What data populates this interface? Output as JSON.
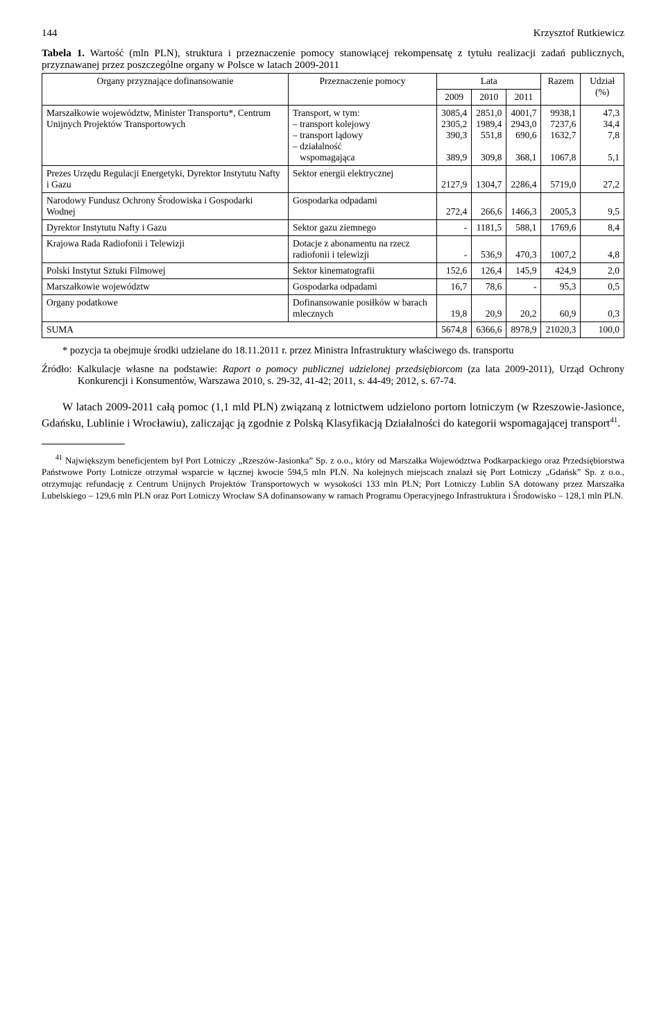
{
  "header": {
    "page_number": "144",
    "running_head": "Krzysztof Rutkiewicz"
  },
  "table": {
    "caption_label": "Tabela 1.",
    "caption_text": "Wartość (mln PLN), struktura i przeznaczenie pomocy stanowiącej rekompensatę z tytułu realizacji zadań publicznych, przyznawanej przez poszczególne organy w Polsce w latach 2009-2011",
    "columns": {
      "col1": "Organy przyznające dofinansowanie",
      "col2": "Przeznaczenie pomocy",
      "lata": "Lata",
      "y2009": "2009",
      "y2010": "2010",
      "y2011": "2011",
      "razem": "Razem",
      "udzial": "Udział (%)"
    },
    "rows": {
      "r1": {
        "organ": "Marszałkowie województw, Minister Transportu*, Centrum Unijnych Projektów Transportowych",
        "przezn_l1": "Transport, w tym:",
        "przezn_l2": "– transport kolejowy",
        "przezn_l3": "– transport lądowy",
        "przezn_l4": "– działalność",
        "przezn_l5": "   wspomagająca",
        "y2009_l1": "3085,4",
        "y2009_l2": "2305,2",
        "y2009_l3": "390,3",
        "y2009_l5": "389,9",
        "y2010_l1": "2851,0",
        "y2010_l2": "1989,4",
        "y2010_l3": "551,8",
        "y2010_l5": "309,8",
        "y2011_l1": "4001,7",
        "y2011_l2": "2943,0",
        "y2011_l3": "690,6",
        "y2011_l5": "368,1",
        "razem_l1": "9938,1",
        "razem_l2": "7237,6",
        "razem_l3": "1632,7",
        "razem_l5": "1067,8",
        "udzial_l1": "47,3",
        "udzial_l2": "34,4",
        "udzial_l3": "7,8",
        "udzial_l5": "5,1"
      },
      "r2": {
        "organ": "Prezes Urzędu Regulacji Energetyki, Dyrektor Instytutu Nafty i Gazu",
        "przezn": "Sektor energii elektrycznej",
        "y2009": "2127,9",
        "y2010": "1304,7",
        "y2011": "2286,4",
        "razem": "5719,0",
        "udzial": "27,2"
      },
      "r3": {
        "organ": "Narodowy Fundusz Ochrony Środowiska i Gospodarki Wodnej",
        "przezn": "Gospodarka odpadami",
        "y2009": "272,4",
        "y2010": "266,6",
        "y2011": "1466,3",
        "razem": "2005,3",
        "udzial": "9,5"
      },
      "r4": {
        "organ": "Dyrektor Instytutu Nafty i Gazu",
        "przezn": "Sektor gazu ziemnego",
        "y2009": "-",
        "y2010": "1181,5",
        "y2011": "588,1",
        "razem": "1769,6",
        "udzial": "8,4"
      },
      "r5": {
        "organ": "Krajowa Rada Radiofonii i Telewizji",
        "przezn": "Dotacje z abonamentu na rzecz radiofonii i telewizji",
        "y2009": "-",
        "y2010": "536,9",
        "y2011": "470,3",
        "razem": "1007,2",
        "udzial": "4,8"
      },
      "r6": {
        "organ": "Polski Instytut Sztuki Filmowej",
        "przezn": "Sektor kinematografii",
        "y2009": "152,6",
        "y2010": "126,4",
        "y2011": "145,9",
        "razem": "424,9",
        "udzial": "2,0"
      },
      "r7": {
        "organ": "Marszałkowie województw",
        "przezn": "Gospodarka odpadami",
        "y2009": "16,7",
        "y2010": "78,6",
        "y2011": "-",
        "razem": "95,3",
        "udzial": "0,5"
      },
      "r8": {
        "organ": "Organy podatkowe",
        "przezn": "Dofinansowanie posiłków w barach mlecznych",
        "y2009": "19,8",
        "y2010": "20,9",
        "y2011": "20,2",
        "razem": "60,9",
        "udzial": "0,3"
      },
      "sum": {
        "organ": "SUMA",
        "y2009": "5674,8",
        "y2010": "6366,6",
        "y2011": "8978,9",
        "razem": "21020,3",
        "udzial": "100,0"
      }
    },
    "table_footnote": "* pozycja ta obejmuje środki udzielane do 18.11.2011 r. przez Ministra Infrastruktury właściwego ds. transportu"
  },
  "source": {
    "label": "Źródło: ",
    "text_p1": "Kalkulacje własne na podstawie: ",
    "italic": "Raport o pomocy publicznej udzielonej przedsiębiorcom",
    "text_p2": " (za lata 2009-2011), Urząd Ochrony Konkurencji i Konsumentów, Warszawa 2010, s. 29-32, 41-42; 2011, s. 44-49; 2012, s. 67-74."
  },
  "body": {
    "para1_a": "W latach 2009-2011 całą pomoc (1,1 mld PLN) związaną z lotnictwem udzielono portom lotniczym (w Rzeszowie-Jasionce, Gdańsku, Lublinie i Wrocławiu), zaliczając ją zgodnie z Polską Klasyfikacją Działalności do kategorii wspomagającej transport",
    "para1_sup": "41",
    "para1_b": "."
  },
  "footnote41": {
    "sup": "41",
    "text": " Największym beneficjentem był Port Lotniczy „Rzeszów-Jasionka” Sp. z o.o., który od Marszałka Województwa Podkarpackiego oraz Przedsiębiorstwa Państwowe Porty Lotnicze otrzymał wsparcie w łącznej kwocie 594,5 mln PLN. Na kolejnych miejscach znalazł się Port Lotniczy „Gdańsk” Sp. z o.o., otrzymując refundację z Centrum Unijnych Projektów Transportowych w wysokości 133 mln PLN; Port Lotniczy Lublin SA dotowany przez Marszałka Lubelskiego – 129,6 mln PLN oraz Port Lotniczy Wrocław SA dofinansowany w ramach Programu Operacyjnego Infrastruktura i Środowisko – 128,1 mln PLN."
  }
}
